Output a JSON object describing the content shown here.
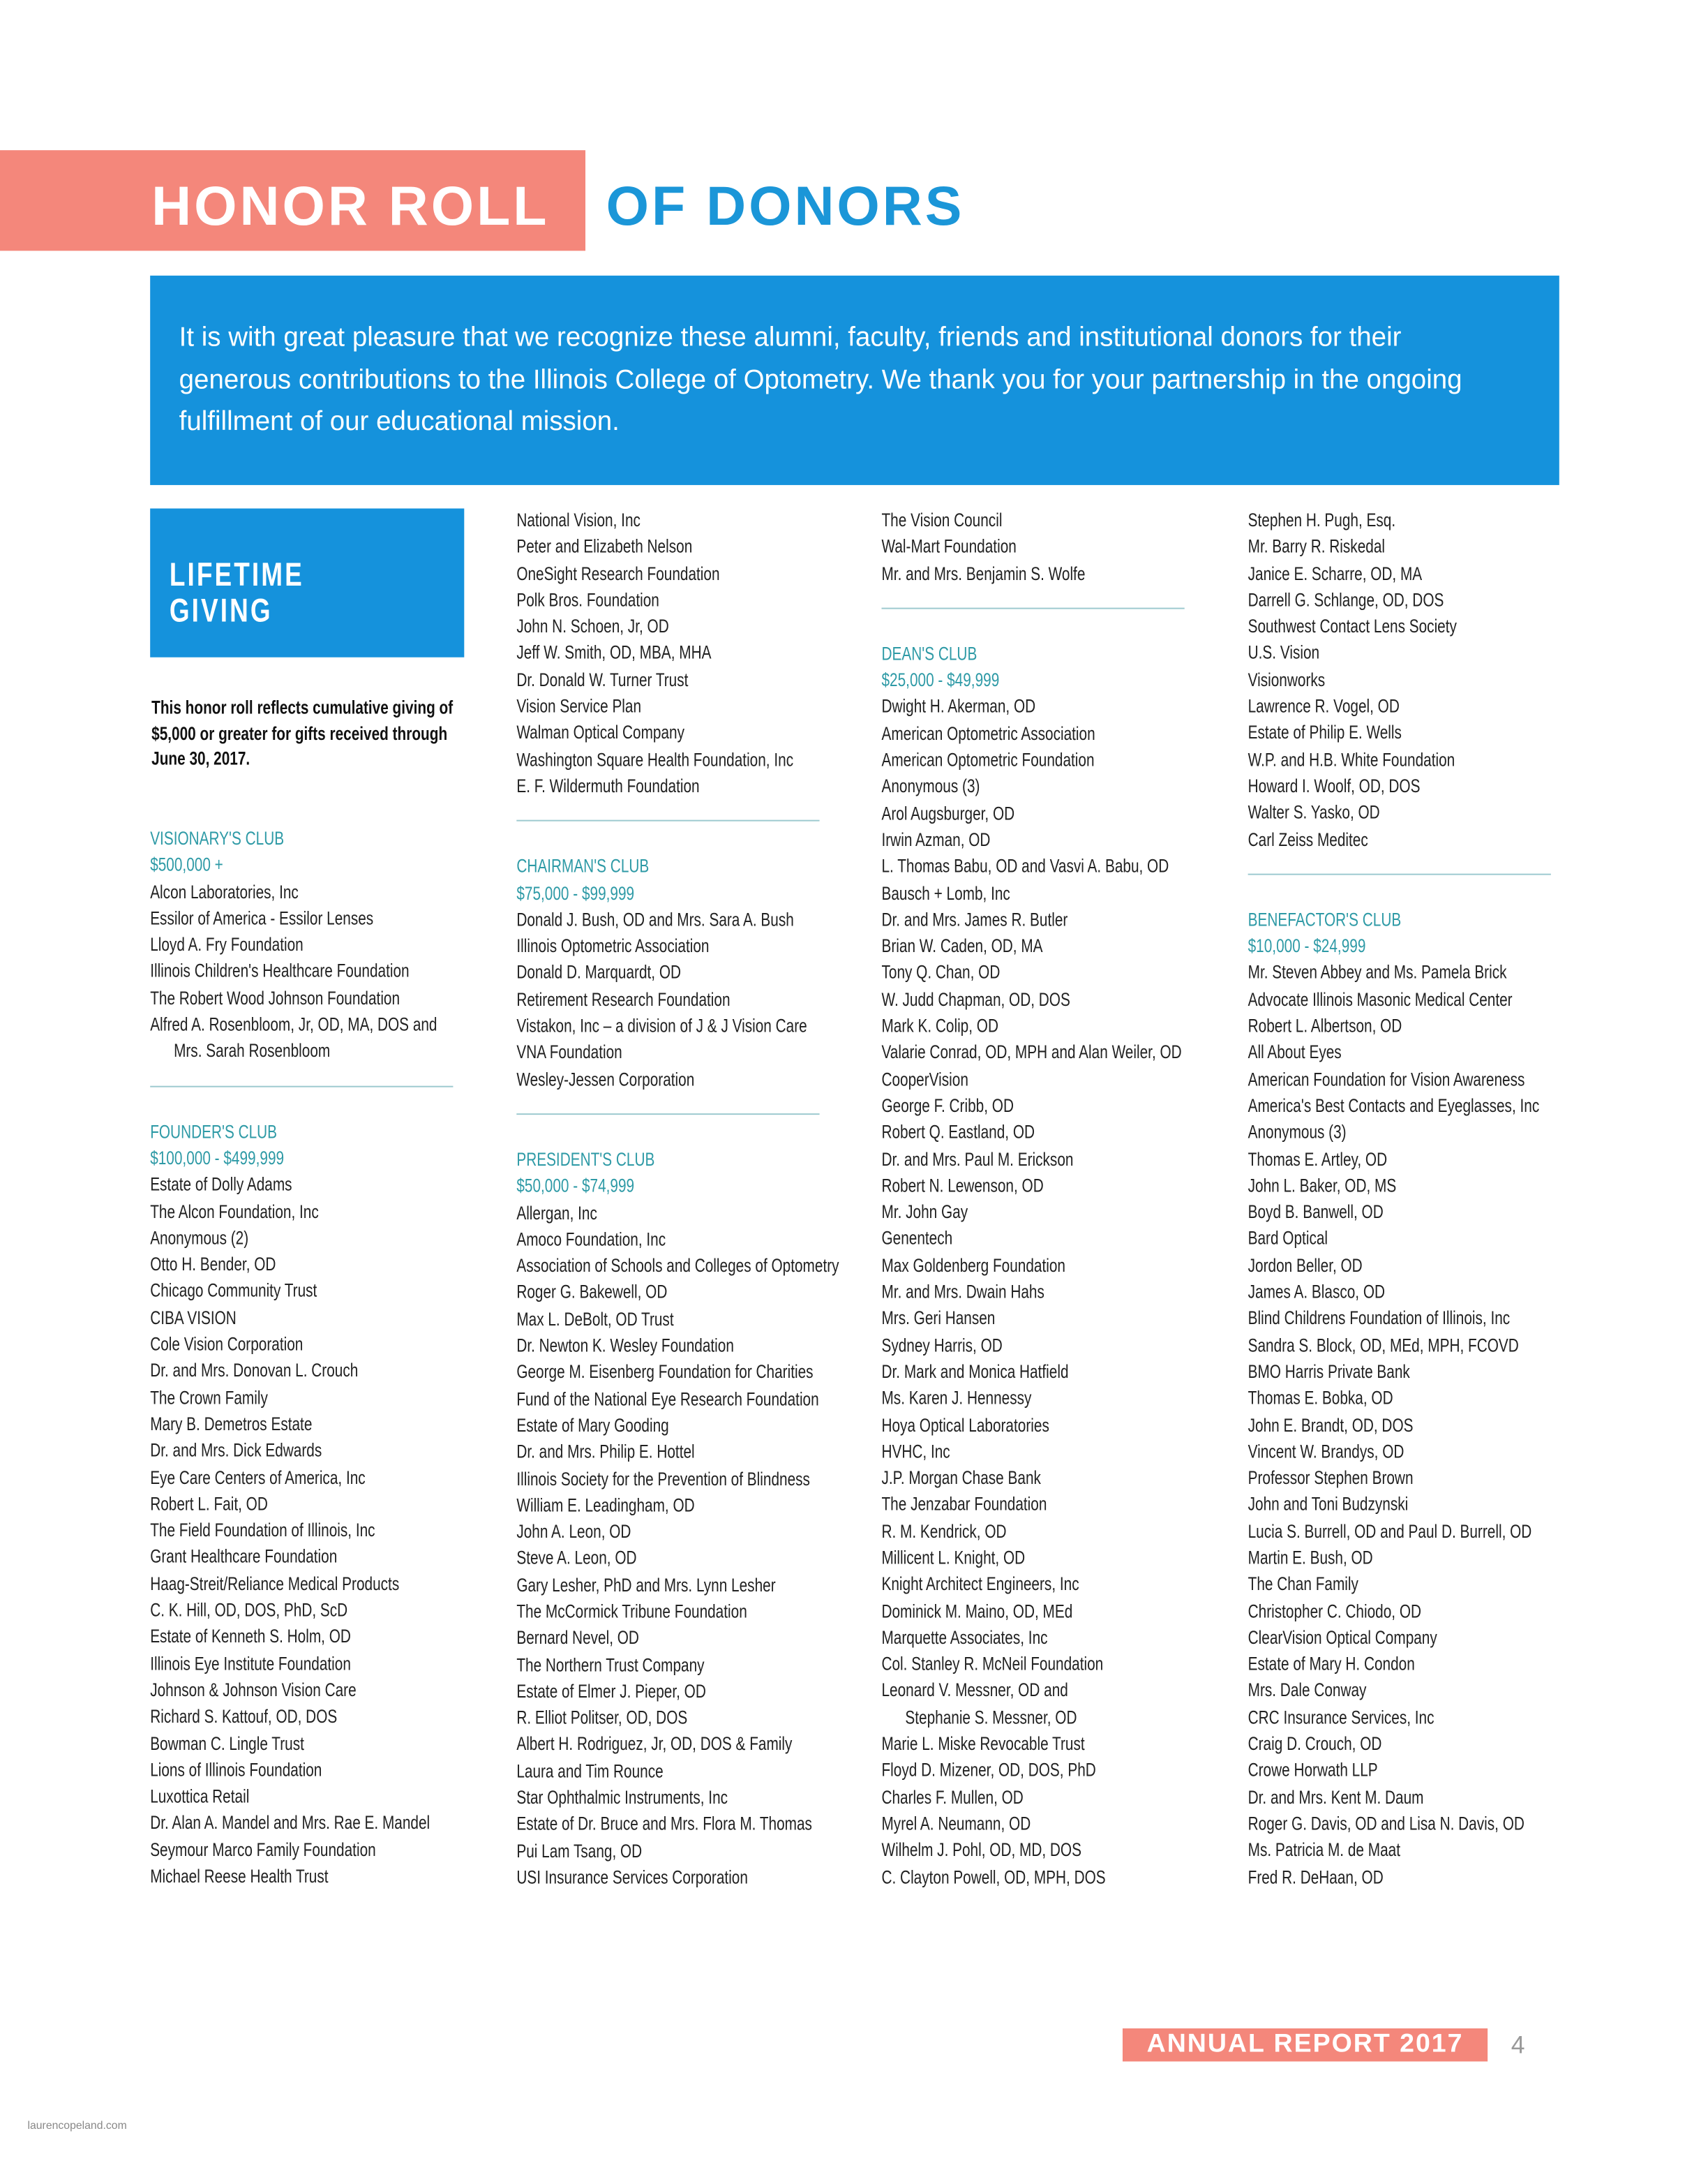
{
  "header": {
    "title_part1": "HONOR ROLL",
    "title_part2": "OF DONORS"
  },
  "intro": "It is with great pleasure that we recognize these alumni, faculty, friends and institutional donors for their generous contributions to the Illinois College of Optometry. We thank you for your partnership in the ongoing fulfillment of our educational mission.",
  "lifetime": {
    "title": "LIFETIME GIVING",
    "note": "This honor roll reflects cumulative giving of $5,000 or greater for gifts received through June 30, 2017."
  },
  "columns": [
    {
      "sections": [
        {
          "heading": "VISIONARY'S CLUB",
          "range": "$500,000 +",
          "names": [
            "Alcon Laboratories, Inc",
            "Essilor of America - Essilor Lenses",
            "Lloyd A. Fry Foundation",
            "Illinois Children's Healthcare Foundation",
            "The Robert Wood Johnson Foundation",
            [
              "Alfred A. Rosenbloom, Jr, OD, MA, DOS and",
              "Mrs. Sarah Rosenbloom"
            ]
          ]
        },
        {
          "heading": "FOUNDER'S CLUB",
          "range": "$100,000 - $499,999",
          "names": [
            "Estate of Dolly Adams",
            "The Alcon Foundation, Inc",
            "Anonymous (2)",
            "Otto H. Bender, OD",
            "Chicago Community Trust",
            "CIBA VISION",
            "Cole Vision Corporation",
            "Dr. and Mrs. Donovan L. Crouch",
            "The Crown Family",
            "Mary B. Demetros Estate",
            "Dr. and Mrs. Dick Edwards",
            "Eye Care Centers of America, Inc",
            "Robert L. Fait, OD",
            "The Field Foundation of Illinois, Inc",
            "Grant Healthcare Foundation",
            "Haag-Streit/Reliance Medical Products",
            "C. K. Hill, OD, DOS, PhD, ScD",
            "Estate of Kenneth S. Holm, OD",
            "Illinois Eye Institute Foundation",
            "Johnson & Johnson Vision Care",
            "Richard S. Kattouf, OD, DOS",
            "Bowman C. Lingle Trust",
            "Lions of Illinois Foundation",
            "Luxottica Retail",
            "Dr. Alan A. Mandel and Mrs. Rae E. Mandel",
            "Seymour Marco Family Foundation",
            "Michael Reese Health Trust"
          ]
        }
      ]
    },
    {
      "sections": [
        {
          "names": [
            "National Vision, Inc",
            "Peter and Elizabeth Nelson",
            "OneSight Research Foundation",
            "Polk Bros. Foundation",
            "John N. Schoen, Jr, OD",
            "Jeff W. Smith, OD, MBA, MHA",
            "Dr. Donald W. Turner Trust",
            "Vision Service Plan",
            "Walman Optical Company",
            "Washington Square Health Foundation, Inc",
            "E. F. Wildermuth Foundation"
          ]
        },
        {
          "heading": "CHAIRMAN'S CLUB",
          "range": "$75,000 - $99,999",
          "names": [
            "Donald J. Bush, OD and Mrs. Sara A. Bush",
            "Illinois Optometric Association",
            "Donald D. Marquardt, OD",
            "Retirement Research Foundation",
            "Vistakon, Inc – a division of J & J Vision Care",
            "VNA Foundation",
            "Wesley-Jessen Corporation"
          ]
        },
        {
          "heading": "PRESIDENT'S CLUB",
          "range": "$50,000 - $74,999",
          "names": [
            "Allergan, Inc",
            "Amoco Foundation, Inc",
            "Association of Schools and Colleges of Optometry",
            "Roger G. Bakewell, OD",
            "Max L. DeBolt, OD Trust",
            "Dr. Newton K. Wesley Foundation",
            "George M. Eisenberg Foundation for Charities",
            "Fund of the National Eye Research Foundation",
            "Estate of Mary Gooding",
            "Dr. and Mrs. Philip E. Hottel",
            "Illinois Society for the Prevention of Blindness",
            "William E. Leadingham, OD",
            "John A. Leon, OD",
            "Steve A. Leon, OD",
            "Gary Lesher, PhD and Mrs. Lynn Lesher",
            "The McCormick Tribune Foundation",
            "Bernard Nevel, OD",
            "The Northern Trust Company",
            "Estate of Elmer J. Pieper, OD",
            "R. Elliot Politser, OD, DOS",
            "Albert H. Rodriguez, Jr, OD, DOS & Family",
            "Laura and Tim Rounce",
            "Star Ophthalmic Instruments, Inc",
            "Estate of Dr. Bruce and Mrs. Flora M. Thomas",
            "Pui Lam Tsang, OD",
            "USI Insurance Services Corporation"
          ]
        }
      ]
    },
    {
      "sections": [
        {
          "names": [
            "The Vision Council",
            "Wal-Mart Foundation",
            "Mr. and Mrs. Benjamin S. Wolfe"
          ]
        },
        {
          "heading": "DEAN'S CLUB",
          "range": "$25,000 - $49,999",
          "names": [
            "Dwight H. Akerman, OD",
            "American Optometric Association",
            "American Optometric Foundation",
            "Anonymous (3)",
            "Arol Augsburger, OD",
            "Irwin Azman, OD",
            "L. Thomas Babu, OD and Vasvi A. Babu, OD",
            "Bausch + Lomb, Inc",
            "Dr. and Mrs. James R. Butler",
            "Brian W. Caden, OD, MA",
            "Tony Q. Chan, OD",
            "W. Judd Chapman, OD, DOS",
            "Mark K. Colip, OD",
            "Valarie Conrad, OD, MPH and Alan Weiler, OD",
            "CooperVision",
            "George F. Cribb, OD",
            "Robert Q. Eastland, OD",
            "Dr. and Mrs. Paul M. Erickson",
            "Robert N. Lewenson, OD",
            "Mr. John Gay",
            "Genentech",
            "Max Goldenberg Foundation",
            "Mr. and Mrs. Dwain Hahs",
            "Mrs. Geri Hansen",
            "Sydney Harris, OD",
            "Dr. Mark and Monica Hatfield",
            "Ms. Karen J. Hennessy",
            "Hoya Optical Laboratories",
            "HVHC, Inc",
            "J.P. Morgan Chase Bank",
            "The Jenzabar Foundation",
            "R. M. Kendrick, OD",
            "Millicent L. Knight, OD",
            "Knight Architect Engineers, Inc",
            "Dominick M. Maino, OD, MEd",
            "Marquette Associates, Inc",
            "Col. Stanley R. McNeil Foundation",
            [
              "Leonard V. Messner, OD and",
              "Stephanie S. Messner, OD"
            ],
            "Marie L. Miske Revocable Trust",
            "Floyd D. Mizener, OD, DOS, PhD",
            "Charles F. Mullen, OD",
            "Myrel A. Neumann, OD",
            "Wilhelm J. Pohl, OD, MD, DOS",
            "C. Clayton Powell, OD, MPH, DOS"
          ]
        }
      ]
    },
    {
      "sections": [
        {
          "names": [
            "Stephen H. Pugh, Esq.",
            "Mr. Barry R. Riskedal",
            "Janice E. Scharre, OD, MA",
            "Darrell G. Schlange, OD, DOS",
            "Southwest Contact Lens Society",
            "U.S. Vision",
            "Visionworks",
            "Lawrence R. Vogel, OD",
            "Estate of Philip E. Wells",
            "W.P. and H.B. White Foundation",
            "Howard I. Woolf, OD, DOS",
            "Walter S. Yasko, OD",
            "Carl Zeiss Meditec"
          ]
        },
        {
          "heading": "BENEFACTOR'S CLUB",
          "range": "$10,000 - $24,999",
          "names": [
            "Mr. Steven Abbey and Ms. Pamela Brick",
            "Advocate Illinois Masonic Medical Center",
            "Robert L. Albertson, OD",
            "All About Eyes",
            "American Foundation for Vision Awareness",
            "America's Best Contacts and Eyeglasses, Inc",
            "Anonymous (3)",
            "Thomas E. Artley, OD",
            "John L. Baker, OD, MS",
            "Boyd B. Banwell, OD",
            "Bard Optical",
            "Jordon Beller, OD",
            "James A. Blasco, OD",
            "Blind Childrens Foundation of Illinois, Inc",
            "Sandra S. Block, OD, MEd, MPH, FCOVD",
            "BMO Harris Private Bank",
            "Thomas E. Bobka, OD",
            "John E. Brandt, OD, DOS",
            "Vincent W. Brandys, OD",
            "Professor Stephen Brown",
            "John and Toni Budzynski",
            "Lucia S. Burrell, OD and Paul D. Burrell, OD",
            "Martin E. Bush, OD",
            "The Chan Family",
            "Christopher C. Chiodo, OD",
            "ClearVision Optical Company",
            "Estate of Mary H. Condon",
            "Mrs. Dale Conway",
            "CRC Insurance Services, Inc",
            "Craig D. Crouch, OD",
            "Crowe Horwath LLP",
            "Dr. and Mrs. Kent M. Daum",
            "Roger G. Davis, OD and Lisa N. Davis, OD",
            "Ms. Patricia M. de Maat",
            "Fred R. DeHaan, OD"
          ]
        }
      ]
    }
  ],
  "footer": {
    "report": "ANNUAL REPORT 2017",
    "page_number": "4",
    "watermark": "laurencopeland.com"
  }
}
